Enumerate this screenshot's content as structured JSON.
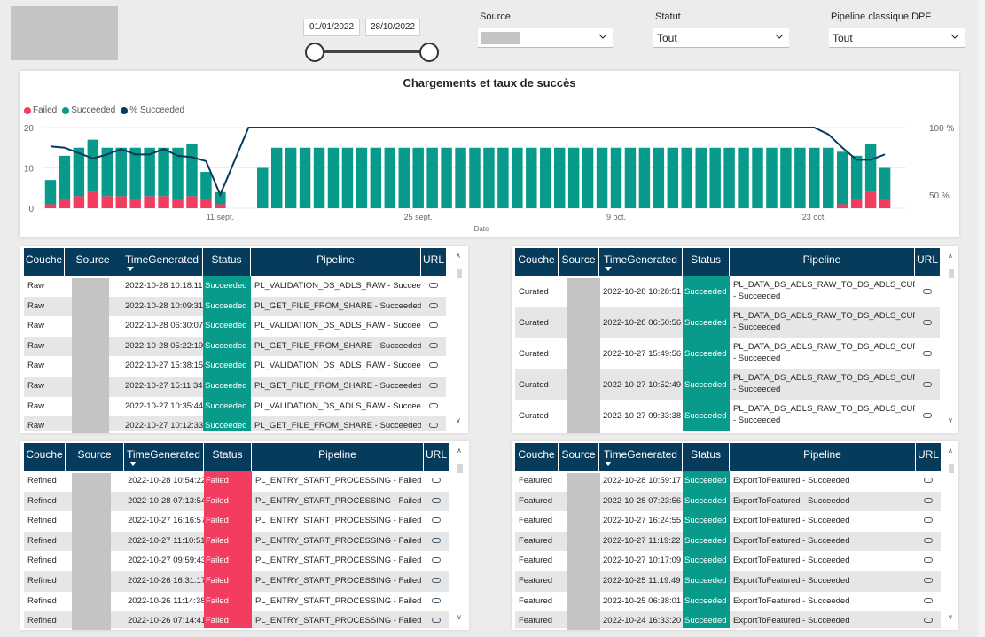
{
  "slicers": {
    "date": {
      "start": "01/01/2022",
      "end": "28/10/2022"
    },
    "source": {
      "title": "Source",
      "value": ""
    },
    "statut": {
      "title": "Statut",
      "value": "Tout"
    },
    "pipeline": {
      "title": "Pipeline classique DPF",
      "value": "Tout"
    }
  },
  "colors": {
    "failed": "#f23c60",
    "succeeded": "#089a8a",
    "percent": "#063b5c",
    "header": "#063b5c"
  },
  "chart_data": {
    "type": "bar",
    "title": "Chargements et taux de succès",
    "xlabel": "Date",
    "legend": [
      "Failed",
      "Succeeded",
      "% Succeeded"
    ],
    "legend_position": "top-left",
    "y_ticks": [
      "0",
      "10",
      "20"
    ],
    "y2_ticks": [
      "50 %",
      "100 %"
    ],
    "ylim": [
      0,
      20
    ],
    "y2lim": [
      0.4,
      1.0
    ],
    "x_ticks": [
      "11 sept.",
      "25 sept.",
      "9 oct.",
      "23 oct."
    ],
    "x_tick_index": [
      12,
      26,
      40,
      54
    ],
    "categories_count": 61,
    "series": [
      {
        "name": "Failed",
        "values": [
          1,
          2,
          3,
          4,
          3,
          3,
          2,
          3,
          3,
          2,
          3,
          2,
          1,
          0,
          0,
          0,
          0,
          0,
          0,
          0,
          0,
          0,
          0,
          0,
          0,
          0,
          0,
          0,
          0,
          0,
          0,
          0,
          0,
          0,
          0,
          0,
          0,
          0,
          0,
          0,
          0,
          0,
          0,
          0,
          0,
          0,
          0,
          0,
          0,
          0,
          0,
          0,
          0,
          0,
          0,
          0,
          1,
          2,
          4,
          2
        ]
      },
      {
        "name": "Succeeded",
        "values": [
          6,
          11,
          12,
          13,
          12,
          12,
          13,
          12,
          12,
          13,
          13,
          7,
          3,
          null,
          null,
          10,
          15,
          15,
          15,
          15,
          15,
          15,
          15,
          15,
          15,
          15,
          15,
          15,
          15,
          15,
          15,
          15,
          15,
          15,
          15,
          15,
          15,
          15,
          15,
          15,
          15,
          15,
          15,
          15,
          15,
          15,
          15,
          15,
          15,
          15,
          15,
          15,
          15,
          15,
          15,
          15,
          13,
          11,
          12,
          8
        ]
      },
      {
        "name": "% Succeeded",
        "values": [
          0.86,
          0.85,
          0.81,
          0.77,
          0.8,
          0.84,
          0.8,
          0.8,
          0.84,
          0.79,
          0.78,
          0.75,
          0.5,
          0.75,
          1.0,
          1.0,
          1.0,
          1.0,
          1.0,
          1.0,
          1.0,
          1.0,
          1.0,
          1.0,
          1.0,
          1.0,
          1.0,
          1.0,
          1.0,
          1.0,
          1.0,
          1.0,
          1.0,
          1.0,
          1.0,
          1.0,
          1.0,
          1.0,
          1.0,
          1.0,
          1.0,
          1.0,
          1.0,
          1.0,
          1.0,
          1.0,
          1.0,
          1.0,
          1.0,
          1.0,
          1.0,
          1.0,
          1.0,
          1.0,
          1.0,
          0.95,
          0.85,
          0.76,
          0.76,
          0.8
        ]
      }
    ]
  },
  "tables": {
    "raw": {
      "headers": [
        "Couche",
        "Source",
        "TimeGenerated",
        "Status",
        "Pipeline",
        "URL"
      ],
      "rows": [
        [
          "Raw",
          "",
          "2022-10-28 10:18:11",
          "Succeeded",
          "PL_VALIDATION_DS_ADLS_RAW - Succeeded"
        ],
        [
          "Raw",
          "",
          "2022-10-28 10:09:31",
          "Succeeded",
          "PL_GET_FILE_FROM_SHARE - Succeeded"
        ],
        [
          "Raw",
          "",
          "2022-10-28 06:30:07",
          "Succeeded",
          "PL_VALIDATION_DS_ADLS_RAW - Succeeded"
        ],
        [
          "Raw",
          "",
          "2022-10-28 05:22:19",
          "Succeeded",
          "PL_GET_FILE_FROM_SHARE - Succeeded"
        ],
        [
          "Raw",
          "",
          "2022-10-27 15:38:15",
          "Succeeded",
          "PL_VALIDATION_DS_ADLS_RAW - Succeeded"
        ],
        [
          "Raw",
          "",
          "2022-10-27 15:11:34",
          "Succeeded",
          "PL_GET_FILE_FROM_SHARE - Succeeded"
        ],
        [
          "Raw",
          "",
          "2022-10-27 10:35:44",
          "Succeeded",
          "PL_VALIDATION_DS_ADLS_RAW - Succeeded"
        ],
        [
          "Raw",
          "",
          "2022-10-27 10:12:33",
          "Succeeded",
          "PL_GET_FILE_FROM_SHARE - Succeeded"
        ]
      ]
    },
    "curated": {
      "headers": [
        "Couche",
        "Source",
        "TimeGenerated",
        "Status",
        "Pipeline",
        "URL"
      ],
      "rows": [
        [
          "Curated",
          "",
          "2022-10-28 10:28:51",
          "Succeeded",
          "PL_DATA_DS_ADLS_RAW_TO_DS_ADLS_CURATED - Succeeded"
        ],
        [
          "Curated",
          "",
          "2022-10-28 06:50:56",
          "Succeeded",
          "PL_DATA_DS_ADLS_RAW_TO_DS_ADLS_CURATED - Succeeded"
        ],
        [
          "Curated",
          "",
          "2022-10-27 15:49:56",
          "Succeeded",
          "PL_DATA_DS_ADLS_RAW_TO_DS_ADLS_CURATED - Succeeded"
        ],
        [
          "Curated",
          "",
          "2022-10-27 10:52:49",
          "Succeeded",
          "PL_DATA_DS_ADLS_RAW_TO_DS_ADLS_CURATED - Succeeded"
        ],
        [
          "Curated",
          "",
          "2022-10-27 09:33:38",
          "Succeeded",
          "PL_DATA_DS_ADLS_RAW_TO_DS_ADLS_CURATED - Succeeded"
        ]
      ]
    },
    "refined": {
      "headers": [
        "Couche",
        "Source",
        "TimeGenerated",
        "Status",
        "Pipeline",
        "URL"
      ],
      "rows": [
        [
          "Refined",
          "",
          "2022-10-28 10:54:22",
          "Failed",
          "PL_ENTRY_START_PROCESSING - Failed"
        ],
        [
          "Refined",
          "",
          "2022-10-28 07:13:54",
          "Failed",
          "PL_ENTRY_START_PROCESSING - Failed"
        ],
        [
          "Refined",
          "",
          "2022-10-27 16:16:57",
          "Failed",
          "PL_ENTRY_START_PROCESSING - Failed"
        ],
        [
          "Refined",
          "",
          "2022-10-27 11:10:51",
          "Failed",
          "PL_ENTRY_START_PROCESSING - Failed"
        ],
        [
          "Refined",
          "",
          "2022-10-27 09:59:43",
          "Failed",
          "PL_ENTRY_START_PROCESSING - Failed"
        ],
        [
          "Refined",
          "",
          "2022-10-26 16:31:17",
          "Failed",
          "PL_ENTRY_START_PROCESSING - Failed"
        ],
        [
          "Refined",
          "",
          "2022-10-26 11:14:38",
          "Failed",
          "PL_ENTRY_START_PROCESSING - Failed"
        ],
        [
          "Refined",
          "",
          "2022-10-26 07:14:41",
          "Failed",
          "PL_ENTRY_START_PROCESSING - Failed"
        ]
      ]
    },
    "featured": {
      "headers": [
        "Couche",
        "Source",
        "TimeGenerated",
        "Status",
        "Pipeline",
        "URL"
      ],
      "rows": [
        [
          "Featured",
          "",
          "2022-10-28 10:59:17",
          "Succeeded",
          "ExportToFeatured - Succeeded"
        ],
        [
          "Featured",
          "",
          "2022-10-28 07:23:56",
          "Succeeded",
          "ExportToFeatured - Succeeded"
        ],
        [
          "Featured",
          "",
          "2022-10-27 16:24:55",
          "Succeeded",
          "ExportToFeatured - Succeeded"
        ],
        [
          "Featured",
          "",
          "2022-10-27 11:19:22",
          "Succeeded",
          "ExportToFeatured - Succeeded"
        ],
        [
          "Featured",
          "",
          "2022-10-27 10:17:09",
          "Succeeded",
          "ExportToFeatured - Succeeded"
        ],
        [
          "Featured",
          "",
          "2022-10-25 11:19:49",
          "Succeeded",
          "ExportToFeatured - Succeeded"
        ],
        [
          "Featured",
          "",
          "2022-10-25 06:38:01",
          "Succeeded",
          "ExportToFeatured - Succeeded"
        ],
        [
          "Featured",
          "",
          "2022-10-24 16:33:20",
          "Succeeded",
          "ExportToFeatured - Succeeded"
        ]
      ]
    }
  }
}
